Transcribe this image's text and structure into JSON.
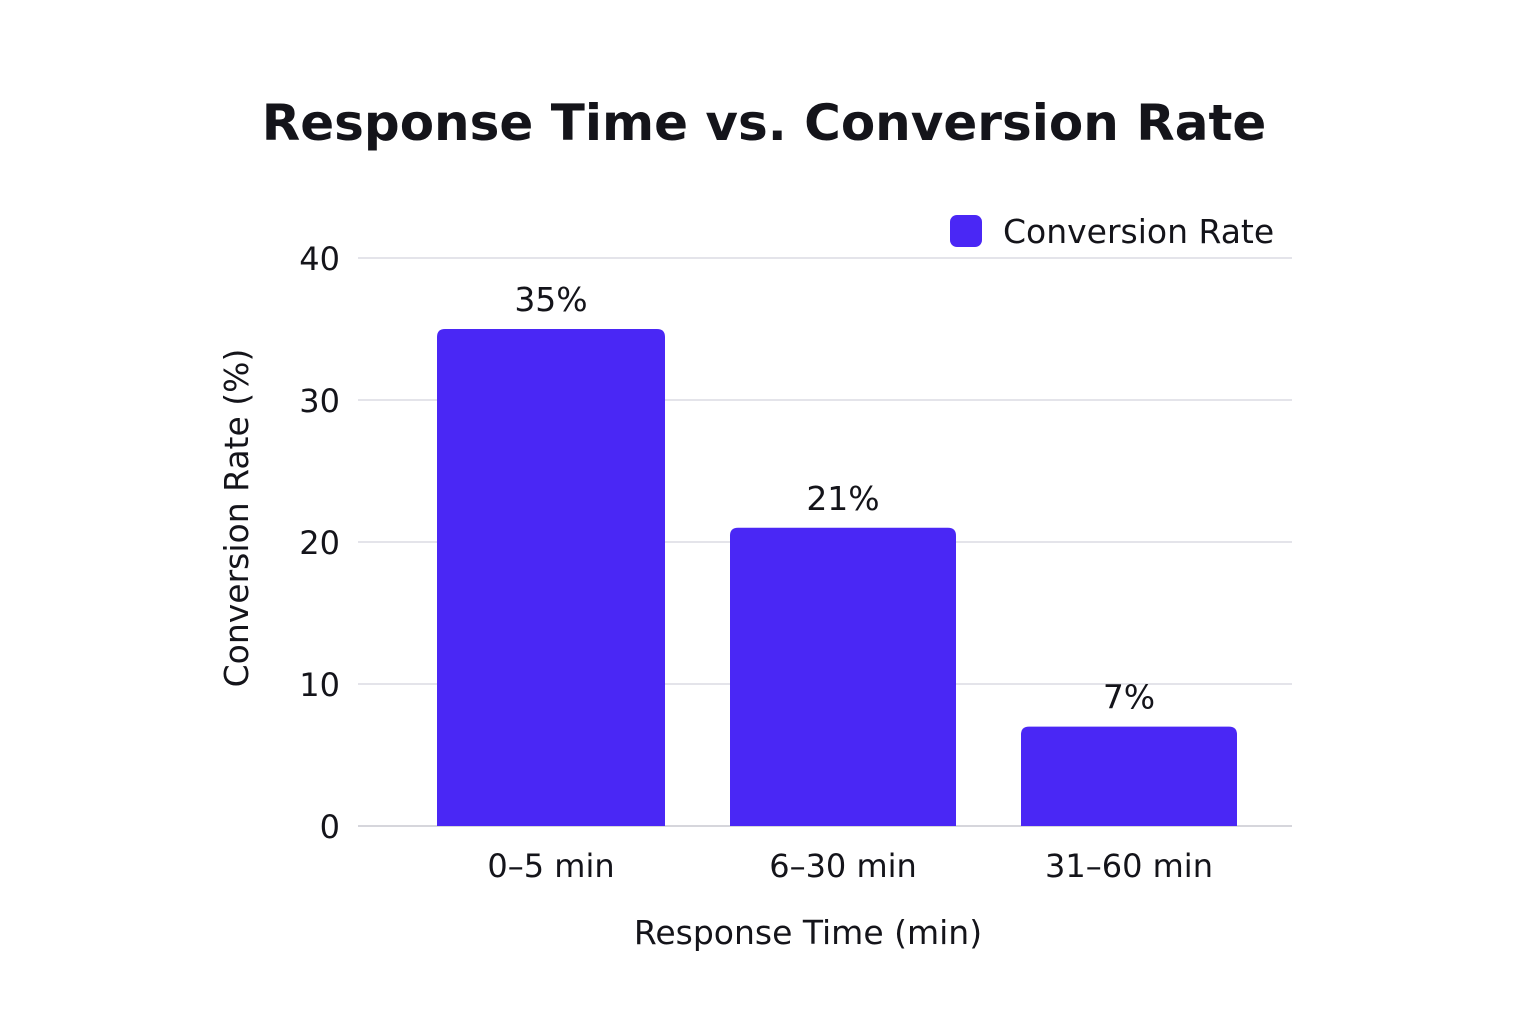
{
  "chart_data": {
    "type": "bar",
    "title": "Response Time vs. Conversion Rate",
    "xlabel": "Response Time (min)",
    "ylabel": "Conversion Rate (%)",
    "categories": [
      "0–5 min",
      "6–30 min",
      "31–60 min"
    ],
    "series": [
      {
        "name": "Conversion Rate",
        "values": [
          35,
          21,
          7
        ],
        "data_labels": [
          "35%",
          "21%",
          "7%"
        ],
        "color": "#4a27f5"
      }
    ],
    "ylim": [
      0,
      40
    ],
    "yticks": [
      0,
      10,
      20,
      30,
      40
    ],
    "grid": true,
    "legend": "top-right"
  }
}
